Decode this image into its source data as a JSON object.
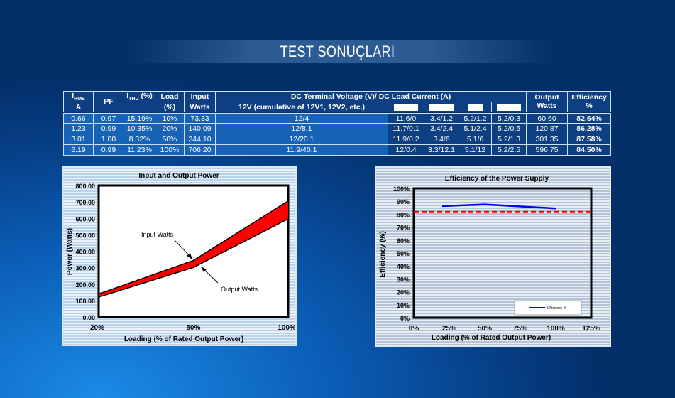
{
  "page": {
    "title": "TEST SONUÇLARI"
  },
  "table": {
    "headers": {
      "irms": "I",
      "irms_sub": "RMS",
      "irms_unit": "A",
      "pf": "PF",
      "ithd": "I",
      "ithd_sub": "THD",
      "ithd_unit": " (%)",
      "load": "Load",
      "load_unit": "(%)",
      "input": "Input",
      "input_unit": "Watts",
      "dc": "DC Terminal Voltage (V)/ DC Load Current (A)",
      "v12": "12V (cumulative of 12V1, 12V2, etc.)",
      "output": "Output",
      "output_unit": "Watts",
      "eff": "Efficiency",
      "eff_unit": "%"
    },
    "rows": [
      [
        "0.66",
        "0.97",
        "15.19%",
        "10%",
        "73.33",
        "12/4",
        "11.6/0",
        "3.4/1.2",
        "5.2/1.2",
        "5.2/0.3",
        "60.60",
        "82.64%"
      ],
      [
        "1.23",
        "0.99",
        "10.35%",
        "20%",
        "140.09",
        "12/8.1",
        "11.7/0.1",
        "3.4/2.4",
        "5.1/2.4",
        "5.2/0.5",
        "120.87",
        "86.28%"
      ],
      [
        "3.01",
        "1.00",
        "8.32%",
        "50%",
        "344.10",
        "12/20.1",
        "11.9/0.2",
        "3.4/6",
        "5.1/6",
        "5.2/1.3",
        "301.35",
        "87.58%"
      ],
      [
        "6.19",
        "0.99",
        "11.23%",
        "100%",
        "706.20",
        "11.9/40.1",
        "12/0.4",
        "3.3/12.1",
        "5.1/12",
        "5.2/2.5",
        "596.75",
        "84.50%"
      ]
    ]
  },
  "chart_data": [
    {
      "type": "area",
      "title": "Input and Output Power",
      "xlabel": "Loading (% of Rated Output Power)",
      "ylabel": "Power (Watts)",
      "categories": [
        "20%",
        "50%",
        "100%"
      ],
      "series": [
        {
          "name": "Input Watts",
          "values": [
            140.09,
            344.1,
            706.2
          ]
        },
        {
          "name": "Output Watts",
          "values": [
            120.87,
            301.35,
            596.75
          ]
        }
      ],
      "ylim": [
        0,
        800
      ],
      "yticks": [
        "0.00",
        "100.00",
        "200.00",
        "300.00",
        "400.00",
        "500.00",
        "600.00",
        "700.00",
        "800.00"
      ],
      "fill_color": "#ff0000",
      "annotations": [
        "Input Watts",
        "Output Watts"
      ]
    },
    {
      "type": "line",
      "title": "Efficiency of the Power Supply",
      "xlabel": "Loading (% of Rated Output Power)",
      "ylabel": "Efficiency (%)",
      "x": [
        20,
        50,
        100
      ],
      "series": [
        {
          "name": "Efficiency %",
          "values": [
            86.28,
            87.58,
            84.5
          ],
          "color": "#0000ff"
        }
      ],
      "reference_line": {
        "value": 82,
        "color": "#ff0000",
        "style": "dashed"
      },
      "xlim": [
        0,
        125
      ],
      "ylim": [
        0,
        100
      ],
      "xticks": [
        "0%",
        "25%",
        "50%",
        "75%",
        "100%",
        "125%"
      ],
      "yticks": [
        "0%",
        "10%",
        "20%",
        "30%",
        "40%",
        "50%",
        "60%",
        "70%",
        "80%",
        "90%",
        "100%"
      ],
      "legend": "bottom-right"
    }
  ]
}
